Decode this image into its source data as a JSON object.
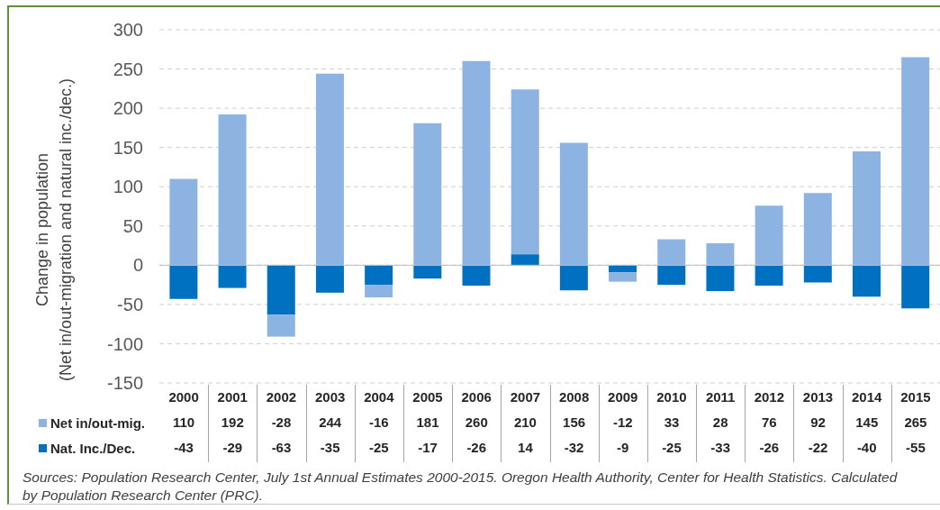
{
  "chart_data": {
    "type": "bar",
    "stacked": true,
    "ylabel": "Change in population\n(Net in/out-migration and natural inc./dec.)",
    "categories": [
      "2000",
      "2001",
      "2002",
      "2003",
      "2004",
      "2005",
      "2006",
      "2007",
      "2008",
      "2009",
      "2010",
      "2011",
      "2012",
      "2013",
      "2014",
      "2015"
    ],
    "series": [
      {
        "name": "Nat. Inc./Dec.",
        "color": "#0070c0",
        "values": [
          -43,
          -29,
          -63,
          -35,
          -25,
          -17,
          -26,
          14,
          -32,
          -9,
          -25,
          -33,
          -26,
          -22,
          -40,
          -55
        ]
      },
      {
        "name": "Net in/out-mig.",
        "color": "#8db3e2",
        "values": [
          110,
          192,
          -28,
          244,
          -16,
          181,
          260,
          210,
          156,
          -12,
          33,
          28,
          76,
          92,
          145,
          265
        ]
      }
    ],
    "ylim": [
      -150,
      300
    ],
    "yticks": [
      -150,
      -100,
      -50,
      0,
      50,
      100,
      150,
      200,
      250,
      300
    ],
    "grid": "y",
    "legend": "bottom left",
    "data_labels": true,
    "annotations": [
      "Sources: Population Research Center, July 1st Annual Estimates 2000-2015. Oregon Health Authority, Center for Health Statistics. Calculated by Population Research Center (PRC)."
    ]
  }
}
